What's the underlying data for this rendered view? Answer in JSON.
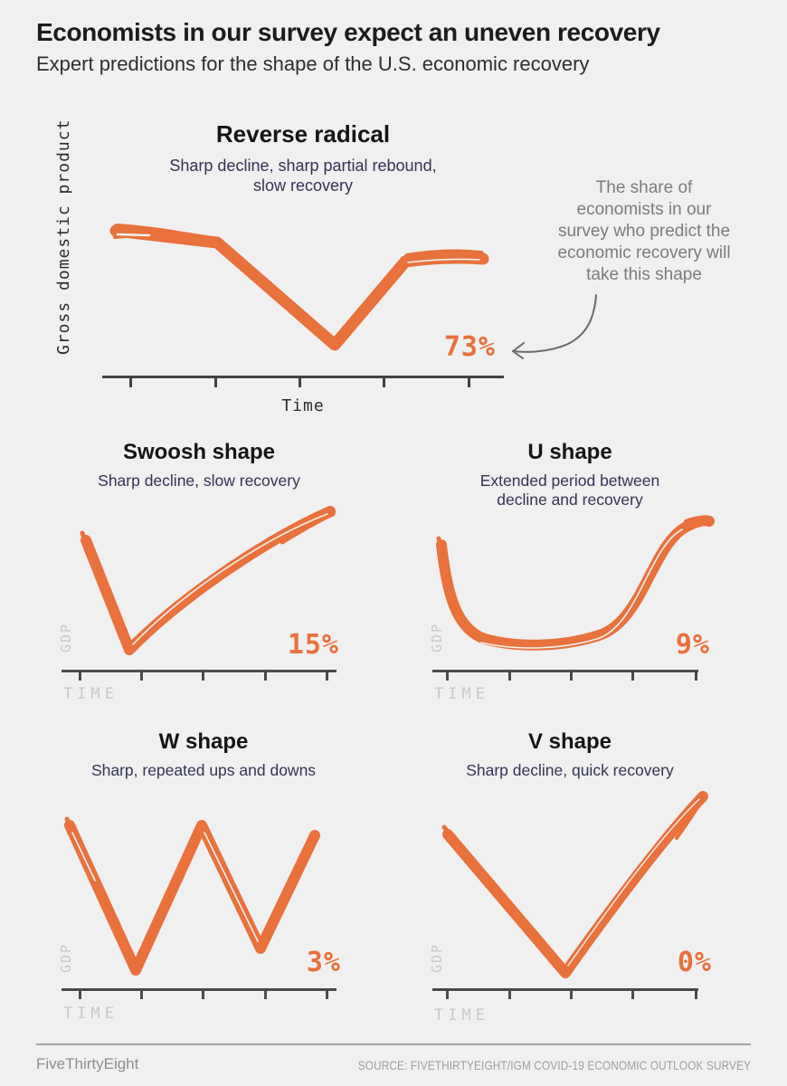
{
  "page": {
    "background_color": "#f0f0f0",
    "accent_orange": "#e8713c",
    "subtitle_navy": "#333355",
    "muted_gray": "#c9c9c9"
  },
  "header": {
    "title": "Economists in our survey expect an uneven recovery",
    "subtitle": "Expert predictions for the shape of the U.S. economic recovery"
  },
  "annotation": {
    "text": "The share of\neconomists in our\nsurvey who predict the\neconomic recovery will\ntake this shape",
    "arrow": "curved-arrow-pointing-left-at-73-percent"
  },
  "charts": {
    "main": {
      "title": "Reverse radical",
      "subtitle": "Sharp decline, sharp partial rebound,\nslow recovery",
      "share": "73%",
      "ylabel": "Gross domestic product",
      "xlabel": "Time"
    },
    "swoosh": {
      "title": "Swoosh shape",
      "subtitle": "Sharp decline, slow recovery",
      "share": "15%",
      "ylabel": "GDP",
      "xlabel": "TIME"
    },
    "u": {
      "title": "U shape",
      "subtitle": "Extended period between\ndecline and recovery",
      "share": "9%",
      "ylabel": "GDP",
      "xlabel": "TIME"
    },
    "w": {
      "title": "W shape",
      "subtitle": "Sharp, repeated ups and downs",
      "share": "3%",
      "ylabel": "GDP",
      "xlabel": "TIME"
    },
    "v": {
      "title": "V shape",
      "subtitle": "Sharp decline, quick recovery",
      "share": "0%",
      "ylabel": "GDP",
      "xlabel": "TIME"
    }
  },
  "chart_data": [
    {
      "type": "line",
      "title": "Reverse radical",
      "subtitle": "Sharp decline, sharp partial rebound, slow recovery",
      "share_pct": 73,
      "xlabel": "Time",
      "ylabel": "Gross domestic product",
      "x_axis_ticks": 5,
      "axis_tick_labels": [],
      "points_norm_xy": [
        [
          0.03,
          0.9
        ],
        [
          0.28,
          0.84
        ],
        [
          0.57,
          0.2
        ],
        [
          0.75,
          0.73
        ],
        [
          0.97,
          0.74
        ]
      ]
    },
    {
      "type": "line",
      "title": "Swoosh shape",
      "subtitle": "Sharp decline, slow recovery",
      "share_pct": 15,
      "xlabel": "TIME",
      "ylabel": "GDP",
      "x_axis_ticks": 5,
      "axis_tick_labels": [],
      "points_norm_xy": [
        [
          0.11,
          0.72
        ],
        [
          0.26,
          0.1
        ],
        [
          0.6,
          0.5
        ],
        [
          0.95,
          0.89
        ]
      ]
    },
    {
      "type": "line",
      "title": "U shape",
      "subtitle": "Extended period between decline and recovery",
      "share_pct": 9,
      "xlabel": "TIME",
      "ylabel": "GDP",
      "x_axis_ticks": 5,
      "axis_tick_labels": [],
      "points_norm_xy": [
        [
          0.06,
          0.7
        ],
        [
          0.18,
          0.17
        ],
        [
          0.58,
          0.15
        ],
        [
          0.88,
          0.83
        ],
        [
          0.98,
          0.84
        ]
      ]
    },
    {
      "type": "line",
      "title": "W shape",
      "subtitle": "Sharp, repeated ups and downs",
      "share_pct": 3,
      "xlabel": "TIME",
      "ylabel": "GDP",
      "x_axis_ticks": 5,
      "axis_tick_labels": [],
      "points_norm_xy": [
        [
          0.05,
          0.88
        ],
        [
          0.28,
          0.08
        ],
        [
          0.51,
          0.88
        ],
        [
          0.71,
          0.22
        ],
        [
          0.9,
          0.82
        ]
      ]
    },
    {
      "type": "line",
      "title": "V shape",
      "subtitle": "Sharp decline, quick recovery",
      "share_pct": 0,
      "xlabel": "TIME",
      "ylabel": "GDP",
      "x_axis_ticks": 5,
      "axis_tick_labels": [],
      "points_norm_xy": [
        [
          0.08,
          0.76
        ],
        [
          0.48,
          0.05
        ],
        [
          0.96,
          0.95
        ]
      ]
    }
  ],
  "footer": {
    "brand": "FiveThirtyEight",
    "source": "SOURCE: FIVETHIRTYEIGHT/IGM COVID-19 ECONOMIC OUTLOOK SURVEY"
  }
}
